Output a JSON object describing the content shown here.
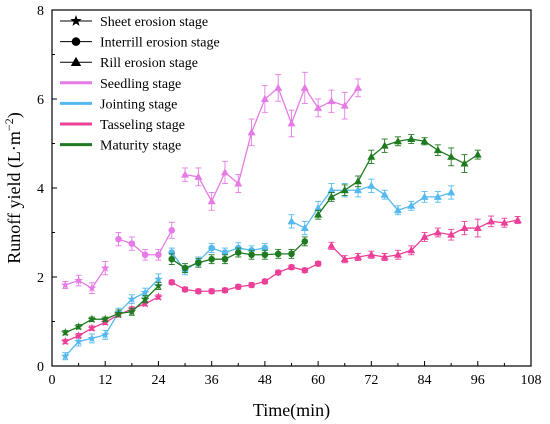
{
  "chart_data": {
    "type": "line",
    "xlabel": "Time(min)",
    "ylabel_prefix": "Runoff yield (L·m",
    "ylabel_sup": "−2",
    "ylabel_suffix": ")",
    "xlim": [
      0,
      108
    ],
    "ylim": [
      0,
      8
    ],
    "xticks": [
      0,
      12,
      24,
      36,
      48,
      60,
      72,
      84,
      96,
      108
    ],
    "yticks": [
      0,
      2,
      4,
      6,
      8
    ],
    "legend_position": "top-left",
    "legend": [
      {
        "label": "Sheet erosion stage",
        "marker": "star",
        "color": "#000000"
      },
      {
        "label": "Interrill erosion stage",
        "marker": "circle",
        "color": "#000000"
      },
      {
        "label": "Rill erosion stage",
        "marker": "triangle",
        "color": "#000000"
      },
      {
        "label": "Seedling stage",
        "marker": "line",
        "color": "#e67be6"
      },
      {
        "label": "Jointing stage",
        "marker": "line",
        "color": "#55b9f0"
      },
      {
        "label": "Tasseling stage",
        "marker": "line",
        "color": "#ec3f98"
      },
      {
        "label": "Maturity stage",
        "marker": "line",
        "color": "#1f7a1f"
      }
    ],
    "series": [
      {
        "name": "Seedling stage",
        "color": "#e67be6",
        "segments": [
          {
            "marker": "star",
            "x": [
              3,
              6,
              9,
              12
            ],
            "y": [
              1.82,
              1.92,
              1.75,
              2.2
            ],
            "err": [
              0.08,
              0.12,
              0.12,
              0.15
            ]
          },
          {
            "marker": "circle",
            "x": [
              15,
              18,
              21,
              24,
              27
            ],
            "y": [
              2.85,
              2.75,
              2.5,
              2.5,
              3.05
            ],
            "err": [
              0.15,
              0.15,
              0.12,
              0.12,
              0.18
            ]
          },
          {
            "marker": "triangle",
            "x": [
              30,
              33,
              36,
              39,
              42,
              45,
              48,
              51,
              54,
              57,
              60,
              63,
              66,
              69
            ],
            "y": [
              4.3,
              4.25,
              3.7,
              4.35,
              4.1,
              5.25,
              6.0,
              6.25,
              5.45,
              6.25,
              5.8,
              5.95,
              5.85,
              6.25
            ],
            "err": [
              0.15,
              0.2,
              0.2,
              0.25,
              0.2,
              0.3,
              0.3,
              0.3,
              0.3,
              0.35,
              0.2,
              0.25,
              0.3,
              0.2
            ]
          }
        ]
      },
      {
        "name": "Jointing stage",
        "color": "#55b9f0",
        "segments": [
          {
            "marker": "star",
            "x": [
              3,
              6,
              9,
              12,
              15,
              18,
              21,
              24
            ],
            "y": [
              0.22,
              0.55,
              0.62,
              0.7,
              1.2,
              1.5,
              1.65,
              1.95
            ],
            "err": [
              0.08,
              0.1,
              0.1,
              0.1,
              0.1,
              0.1,
              0.1,
              0.12
            ]
          },
          {
            "marker": "circle",
            "x": [
              27,
              30,
              33,
              36,
              39,
              42,
              45,
              48
            ],
            "y": [
              2.55,
              2.15,
              2.35,
              2.65,
              2.55,
              2.65,
              2.6,
              2.65
            ],
            "err": [
              0.1,
              0.1,
              0.1,
              0.1,
              0.1,
              0.12,
              0.1,
              0.1
            ]
          },
          {
            "marker": "triangle",
            "x": [
              54,
              57,
              60,
              63,
              66,
              69,
              72,
              75,
              78,
              81,
              84,
              87,
              90
            ],
            "y": [
              3.25,
              3.1,
              3.55,
              3.95,
              3.95,
              3.95,
              4.05,
              3.85,
              3.5,
              3.6,
              3.8,
              3.8,
              3.9
            ],
            "err": [
              0.15,
              0.15,
              0.15,
              0.15,
              0.15,
              0.15,
              0.15,
              0.1,
              0.1,
              0.1,
              0.12,
              0.12,
              0.15
            ]
          }
        ]
      },
      {
        "name": "Tasseling stage",
        "color": "#ec3f98",
        "segments": [
          {
            "marker": "star",
            "x": [
              3,
              6,
              9,
              12,
              15,
              18,
              21,
              24
            ],
            "y": [
              0.55,
              0.68,
              0.85,
              0.98,
              1.15,
              1.28,
              1.4,
              1.55
            ],
            "err": [
              0.05,
              0.05,
              0.05,
              0.05,
              0.05,
              0.05,
              0.05,
              0.05
            ]
          },
          {
            "marker": "circle",
            "x": [
              27,
              30,
              33,
              36,
              39,
              42,
              45,
              48,
              51,
              54,
              57,
              60
            ],
            "y": [
              1.88,
              1.72,
              1.68,
              1.68,
              1.7,
              1.78,
              1.82,
              1.9,
              2.1,
              2.22,
              2.15,
              2.3
            ],
            "err": [
              0.05,
              0.05,
              0.05,
              0.05,
              0.05,
              0.05,
              0.05,
              0.05,
              0.05,
              0.05,
              0.05,
              0.05
            ]
          },
          {
            "marker": "triangle",
            "x": [
              63,
              66,
              69,
              72,
              75,
              78,
              81,
              84,
              87,
              90,
              93,
              96,
              99,
              102,
              105
            ],
            "y": [
              2.7,
              2.4,
              2.45,
              2.5,
              2.45,
              2.5,
              2.6,
              2.9,
              3.0,
              2.95,
              3.1,
              3.1,
              3.25,
              3.22,
              3.28
            ],
            "err": [
              0.08,
              0.08,
              0.08,
              0.08,
              0.08,
              0.1,
              0.1,
              0.1,
              0.1,
              0.12,
              0.15,
              0.2,
              0.12,
              0.1,
              0.08
            ]
          }
        ]
      },
      {
        "name": "Maturity stage",
        "color": "#1f7a1f",
        "segments": [
          {
            "marker": "star",
            "x": [
              3,
              6,
              9,
              12,
              15,
              18,
              21,
              24
            ],
            "y": [
              0.75,
              0.88,
              1.05,
              1.05,
              1.18,
              1.22,
              1.5,
              1.8
            ],
            "err": [
              0.05,
              0.05,
              0.05,
              0.05,
              0.08,
              0.08,
              0.08,
              0.08
            ]
          },
          {
            "marker": "circle",
            "x": [
              27,
              30,
              33,
              36,
              39,
              42,
              45,
              48,
              51,
              54,
              57
            ],
            "y": [
              2.4,
              2.2,
              2.32,
              2.4,
              2.4,
              2.55,
              2.5,
              2.5,
              2.52,
              2.52,
              2.8
            ],
            "err": [
              0.12,
              0.1,
              0.1,
              0.1,
              0.1,
              0.1,
              0.1,
              0.1,
              0.1,
              0.1,
              0.1
            ]
          },
          {
            "marker": "triangle",
            "x": [
              60,
              63,
              66,
              69,
              72,
              75,
              78,
              81,
              84,
              87,
              90,
              93,
              96
            ],
            "y": [
              3.4,
              3.8,
              3.95,
              4.15,
              4.7,
              4.95,
              5.05,
              5.1,
              5.05,
              4.85,
              4.7,
              4.55,
              4.75
            ],
            "err": [
              0.1,
              0.1,
              0.12,
              0.12,
              0.15,
              0.15,
              0.1,
              0.1,
              0.08,
              0.12,
              0.2,
              0.2,
              0.1
            ]
          }
        ]
      }
    ]
  }
}
